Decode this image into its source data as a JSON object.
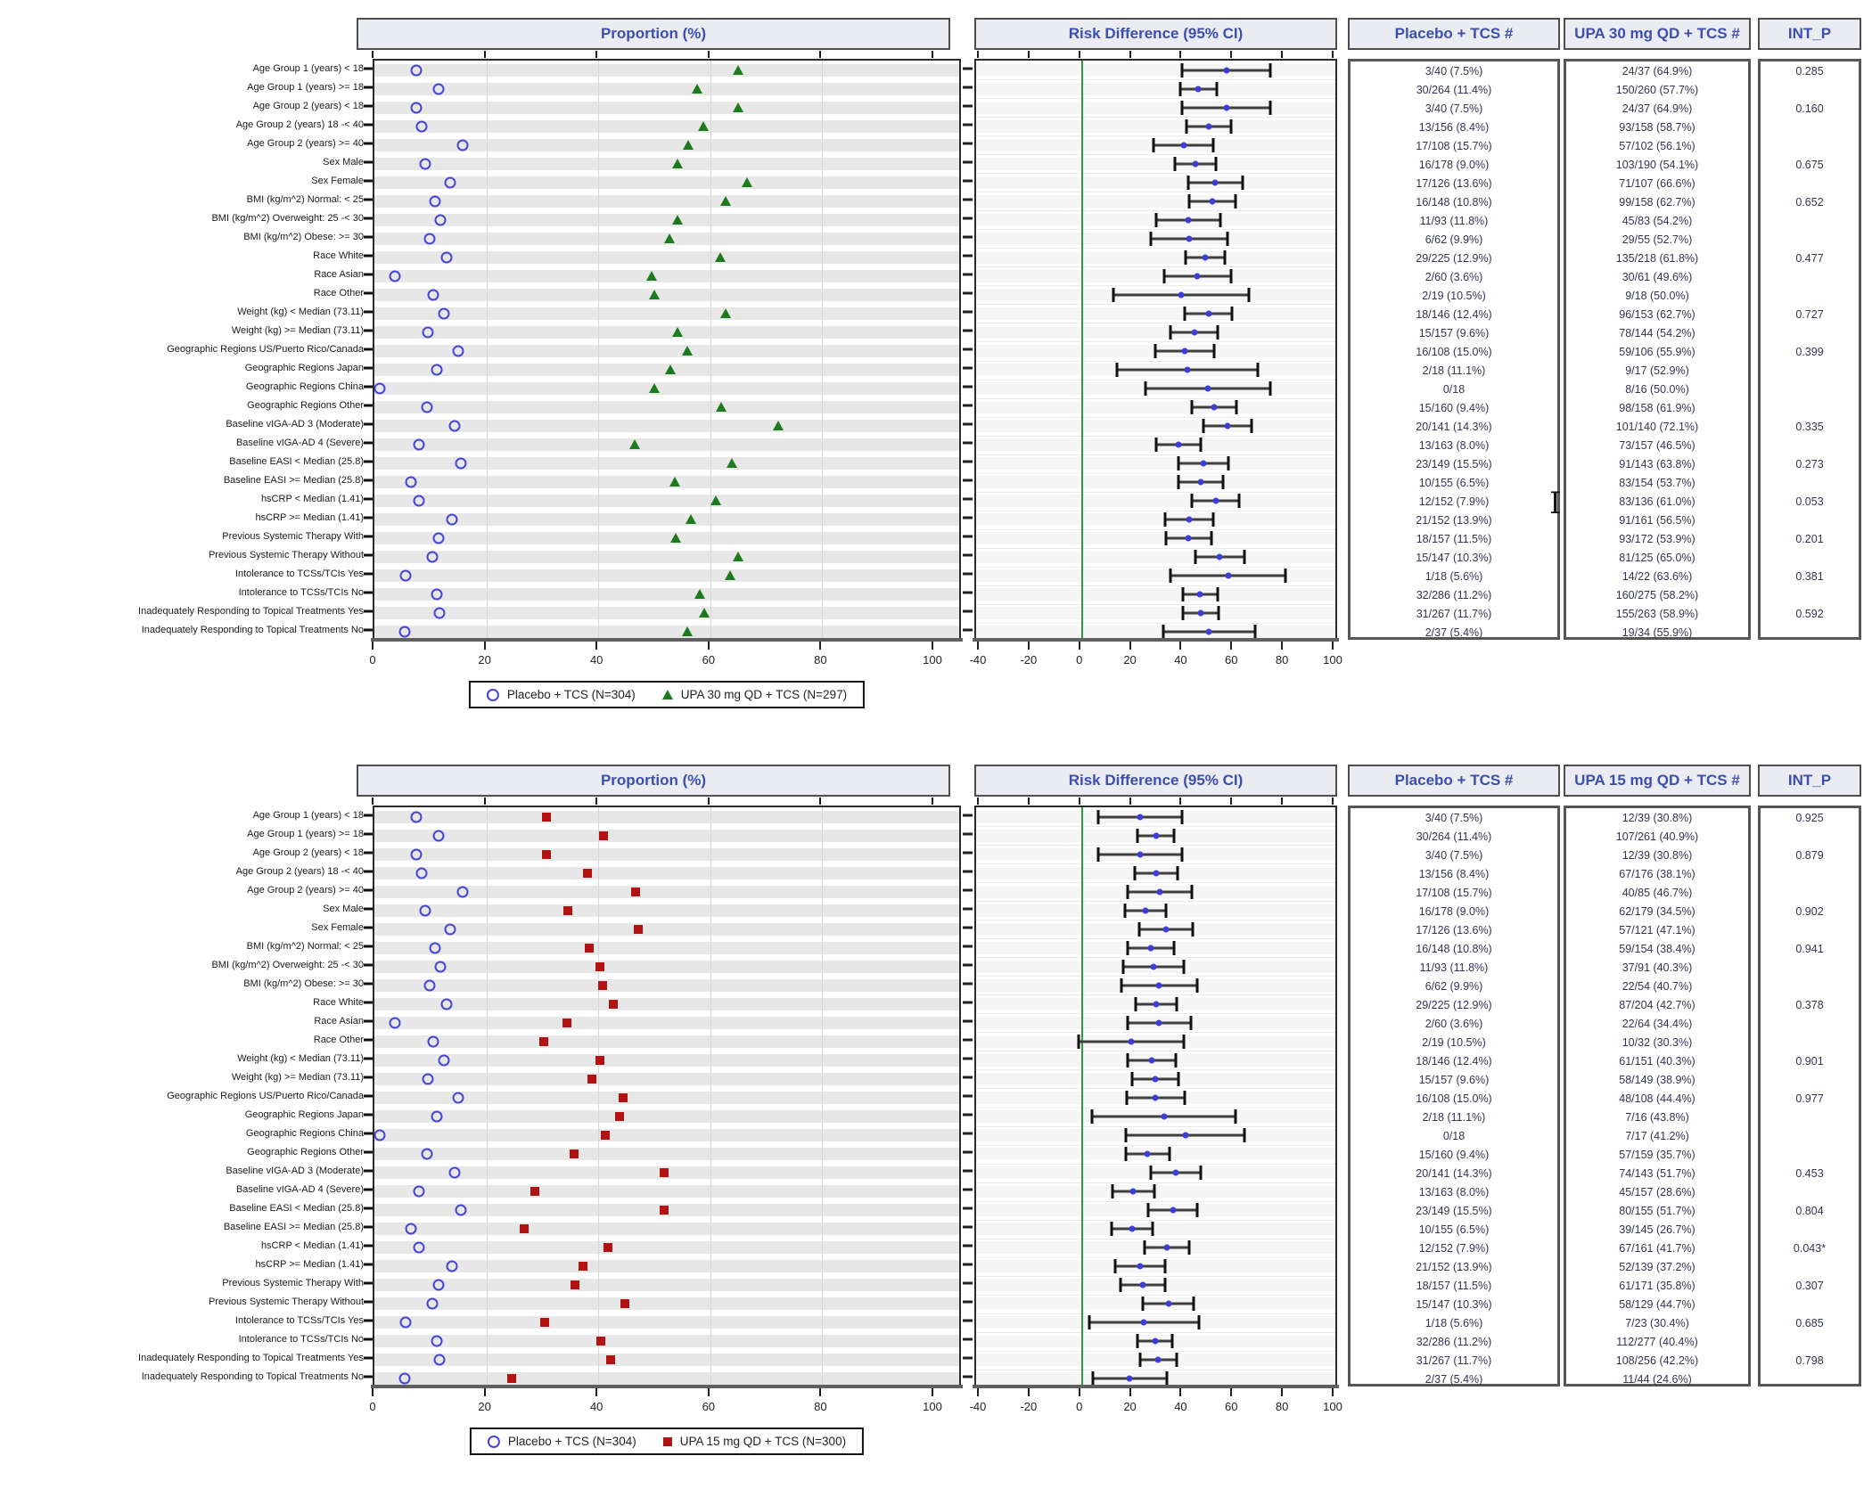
{
  "chart_data": {
    "type": "forest",
    "title": "",
    "proportion_axis": {
      "title": "Proportion (%)",
      "min": 0,
      "max": 100,
      "ticks": [
        0,
        20,
        40,
        60,
        80,
        100
      ],
      "gridlines": [
        20,
        40,
        60,
        80
      ]
    },
    "risk_axis": {
      "title": "Risk Difference (95% CI)",
      "min": -40,
      "max": 100,
      "ticks": [
        -40,
        -20,
        0,
        20,
        40,
        60,
        80,
        100
      ],
      "zero_line_color": "#2d9c3e"
    },
    "row_format": [
      "label",
      "placebo",
      "placebo_pct",
      "active",
      "active_pct",
      "rd",
      "ci_lo",
      "ci_hi",
      "int_p"
    ],
    "colors": {
      "placebo_marker": "#4646d6",
      "upa30_marker": "#1d7a1d",
      "upa15_marker": "#b21212",
      "rd_dot": "#3d3dd8",
      "header_text": "#3b4fae",
      "header_bg": "#ebebf2",
      "zero_line": "#2d9c3e"
    },
    "panels": [
      {
        "name": "UPA 30 mg QD",
        "headers": {
          "proportion": "Proportion (%)",
          "risk": "Risk Difference (95% CI)",
          "placebo": "Placebo + TCS #",
          "active": "UPA 30 mg QD + TCS #",
          "int_p": "INT_P"
        },
        "legend": {
          "placebo": "Placebo + TCS (N=304)",
          "active": "UPA 30 mg QD + TCS (N=297)"
        },
        "active_marker": {
          "shape": "triangle",
          "color": "#1d7a1d"
        },
        "rows": [
          [
            "Age Group 1 (years) < 18",
            "3/40 (7.5%)",
            7.5,
            "24/37 (64.9%)",
            64.9,
            57.4,
            40.0,
            74.8,
            "0.285"
          ],
          [
            "Age Group 1 (years) >= 18",
            "30/264 (11.4%)",
            11.4,
            "150/260 (57.7%)",
            57.7,
            46.3,
            39.2,
            53.4,
            null
          ],
          [
            "Age Group 2 (years) < 18",
            "3/40 (7.5%)",
            7.5,
            "24/37 (64.9%)",
            64.9,
            57.4,
            40.0,
            74.8,
            "0.160"
          ],
          [
            "Age Group 2 (years) 18 -< 40",
            "13/156 (8.4%)",
            8.4,
            "93/158 (58.7%)",
            58.7,
            50.3,
            41.5,
            59.1,
            null
          ],
          [
            "Age Group 2 (years) >= 40",
            "17/108 (15.7%)",
            15.7,
            "57/102 (56.1%)",
            56.1,
            40.4,
            28.6,
            52.2,
            null
          ],
          [
            "Sex Male",
            "16/178 (9.0%)",
            9.0,
            "103/190 (54.1%)",
            54.1,
            45.1,
            36.9,
            53.3,
            "0.675"
          ],
          [
            "Sex Female",
            "17/126 (13.6%)",
            13.6,
            "71/107 (66.6%)",
            66.6,
            53.0,
            42.2,
            63.8,
            null
          ],
          [
            "BMI (kg/m^2) Normal: < 25",
            "16/148 (10.8%)",
            10.8,
            "99/158 (62.7%)",
            62.7,
            51.9,
            42.8,
            61.0,
            "0.652"
          ],
          [
            "BMI (kg/m^2) Overweight: 25 -< 30",
            "11/93 (11.8%)",
            11.8,
            "45/83 (54.2%)",
            54.2,
            42.4,
            29.8,
            55.0,
            null
          ],
          [
            "BMI (kg/m^2) Obese: >= 30",
            "6/62 (9.9%)",
            9.9,
            "29/55 (52.7%)",
            52.7,
            42.8,
            27.7,
            57.9,
            null
          ],
          [
            "Race White",
            "29/225 (12.9%)",
            12.9,
            "135/218 (61.8%)",
            61.8,
            48.9,
            41.1,
            56.7,
            "0.477"
          ],
          [
            "Race Asian",
            "2/60 (3.6%)",
            3.6,
            "30/61 (49.6%)",
            49.6,
            46.0,
            32.7,
            59.3,
            null
          ],
          [
            "Race Other",
            "2/19 (10.5%)",
            10.5,
            "9/18 (50.0%)",
            50.0,
            39.5,
            12.6,
            66.4,
            null
          ],
          [
            "Weight (kg) < Median (73.11)",
            "18/146 (12.4%)",
            12.4,
            "96/153 (62.7%)",
            62.7,
            50.3,
            41.0,
            59.6,
            "0.727"
          ],
          [
            "Weight (kg) >= Median (73.11)",
            "15/157 (9.6%)",
            9.6,
            "78/144 (54.2%)",
            54.2,
            44.6,
            35.3,
            53.9,
            null
          ],
          [
            "Geographic Regions US/Puerto Rico/Canada",
            "16/108 (15.0%)",
            15.0,
            "59/106 (55.9%)",
            55.9,
            40.9,
            29.3,
            52.5,
            "0.399"
          ],
          [
            "Geographic Regions Japan",
            "2/18 (11.1%)",
            11.1,
            "9/17 (52.9%)",
            52.9,
            41.8,
            14.0,
            69.6,
            null
          ],
          [
            "Geographic Regions China",
            "0/18",
            0.0,
            "8/16 (50.0%)",
            50.0,
            50.0,
            25.5,
            74.5,
            null
          ],
          [
            "Geographic Regions Other",
            "15/160 (9.4%)",
            9.4,
            "98/158 (61.9%)",
            61.9,
            52.5,
            43.7,
            61.3,
            null
          ],
          [
            "Baseline vIGA-AD 3 (Moderate)",
            "20/141 (14.3%)",
            14.3,
            "101/140 (72.1%)",
            72.1,
            57.8,
            48.4,
            67.2,
            "0.335"
          ],
          [
            "Baseline vIGA-AD 4 (Severe)",
            "13/163 (8.0%)",
            8.0,
            "73/157 (46.5%)",
            46.5,
            38.5,
            29.7,
            47.3,
            null
          ],
          [
            "Baseline EASI < Median (25.8)",
            "23/149 (15.5%)",
            15.5,
            "91/143 (63.8%)",
            63.8,
            48.3,
            38.5,
            58.1,
            "0.273"
          ],
          [
            "Baseline EASI >= Median (25.8)",
            "10/155 (6.5%)",
            6.5,
            "83/154 (53.7%)",
            53.7,
            47.2,
            38.4,
            56.0,
            null
          ],
          [
            "hsCRP < Median (1.41)",
            "12/152 (7.9%)",
            7.9,
            "83/136 (61.0%)",
            61.0,
            53.1,
            43.8,
            62.4,
            "0.053"
          ],
          [
            "hsCRP >= Median (1.41)",
            "21/152 (13.9%)",
            13.9,
            "91/161 (56.5%)",
            56.5,
            42.6,
            33.2,
            52.0,
            null
          ],
          [
            "Previous Systemic Therapy With",
            "18/157 (11.5%)",
            11.5,
            "93/172 (53.9%)",
            53.9,
            42.4,
            33.4,
            51.4,
            "0.201"
          ],
          [
            "Previous Systemic Therapy Without",
            "15/147 (10.3%)",
            10.3,
            "81/125 (65.0%)",
            65.0,
            54.7,
            45.0,
            64.4,
            null
          ],
          [
            "Intolerance to TCSs/TCIs Yes",
            "1/18 (5.6%)",
            5.6,
            "14/22 (63.6%)",
            63.6,
            58.0,
            35.3,
            80.7,
            "0.381"
          ],
          [
            "Intolerance to TCSs/TCIs No",
            "32/286 (11.2%)",
            11.2,
            "160/275 (58.2%)",
            58.2,
            47.0,
            40.1,
            53.9,
            null
          ],
          [
            "Inadequately Responding to Topical Treatments Yes",
            "31/267 (11.7%)",
            11.7,
            "155/263 (58.9%)",
            58.9,
            47.2,
            40.1,
            54.3,
            "0.592"
          ],
          [
            "Inadequately Responding to Topical Treatments No",
            "2/37 (5.4%)",
            5.4,
            "19/34 (55.9%)",
            55.9,
            50.5,
            32.3,
            68.7,
            null
          ]
        ]
      },
      {
        "name": "UPA 15 mg QD",
        "headers": {
          "proportion": "Proportion (%)",
          "risk": "Risk Difference (95% CI)",
          "placebo": "Placebo + TCS #",
          "active": "UPA 15 mg QD + TCS #",
          "int_p": "INT_P"
        },
        "legend": {
          "placebo": "Placebo + TCS (N=304)",
          "active": "UPA 15 mg QD + TCS (N=300)"
        },
        "active_marker": {
          "shape": "square",
          "color": "#b21212"
        },
        "rows": [
          [
            "Age Group 1 (years) < 18",
            "3/40 (7.5%)",
            7.5,
            "12/39 (30.8%)",
            30.8,
            23.3,
            6.7,
            39.9,
            "0.925"
          ],
          [
            "Age Group 1 (years) >= 18",
            "30/264 (11.4%)",
            11.4,
            "107/261 (40.9%)",
            40.9,
            29.5,
            22.4,
            36.6,
            null
          ],
          [
            "Age Group 2 (years) < 18",
            "3/40 (7.5%)",
            7.5,
            "12/39 (30.8%)",
            30.8,
            23.3,
            6.7,
            39.9,
            "0.879"
          ],
          [
            "Age Group 2 (years) 18 -< 40",
            "13/156 (8.4%)",
            8.4,
            "67/176 (38.1%)",
            38.1,
            29.7,
            21.3,
            38.1,
            null
          ],
          [
            "Age Group 2 (years) >= 40",
            "17/108 (15.7%)",
            15.7,
            "40/85 (46.7%)",
            46.7,
            31.0,
            18.4,
            43.6,
            null
          ],
          [
            "Sex Male",
            "16/178 (9.0%)",
            9.0,
            "62/179 (34.5%)",
            34.5,
            25.5,
            17.4,
            33.6,
            "0.902"
          ],
          [
            "Sex Female",
            "17/126 (13.6%)",
            13.6,
            "57/121 (47.1%)",
            47.1,
            33.5,
            22.8,
            44.2,
            null
          ],
          [
            "BMI (kg/m^2) Normal: < 25",
            "16/148 (10.8%)",
            10.8,
            "59/154 (38.4%)",
            38.4,
            27.6,
            18.4,
            36.8,
            "0.941"
          ],
          [
            "BMI (kg/m^2) Overweight: 25 -< 30",
            "11/93 (11.8%)",
            11.8,
            "37/91 (40.3%)",
            40.3,
            28.5,
            16.5,
            40.5,
            null
          ],
          [
            "BMI (kg/m^2) Obese: >= 30",
            "6/62 (9.9%)",
            9.9,
            "22/54 (40.7%)",
            40.7,
            30.8,
            15.8,
            45.8,
            null
          ],
          [
            "Race White",
            "29/225 (12.9%)",
            12.9,
            "87/204 (42.7%)",
            42.7,
            29.8,
            21.7,
            37.9,
            "0.378"
          ],
          [
            "Race Asian",
            "2/60 (3.6%)",
            3.6,
            "22/64 (34.4%)",
            34.4,
            30.8,
            18.3,
            43.3,
            null
          ],
          [
            "Race Other",
            "2/19 (10.5%)",
            10.5,
            "10/32 (30.3%)",
            30.3,
            19.8,
            -1.1,
            40.7,
            null
          ],
          [
            "Weight (kg) < Median (73.11)",
            "18/146 (12.4%)",
            12.4,
            "61/151 (40.3%)",
            40.3,
            27.9,
            18.4,
            37.4,
            "0.901"
          ],
          [
            "Weight (kg) >= Median (73.11)",
            "15/157 (9.6%)",
            9.6,
            "58/149 (38.9%)",
            38.9,
            29.3,
            20.2,
            38.4,
            null
          ],
          [
            "Geographic Regions US/Puerto Rico/Canada",
            "16/108 (15.0%)",
            15.0,
            "48/108 (44.4%)",
            44.4,
            29.4,
            17.9,
            40.9,
            "0.977"
          ],
          [
            "Geographic Regions Japan",
            "2/18 (11.1%)",
            11.1,
            "7/16 (43.8%)",
            43.8,
            32.7,
            4.4,
            61.0,
            null
          ],
          [
            "Geographic Regions China",
            "0/18",
            0.0,
            "7/17 (41.2%)",
            41.2,
            41.2,
            17.8,
            64.6,
            null
          ],
          [
            "Geographic Regions Other",
            "15/160 (9.4%)",
            9.4,
            "57/159 (35.7%)",
            35.7,
            26.3,
            17.6,
            35.0,
            null
          ],
          [
            "Baseline vIGA-AD 3 (Moderate)",
            "20/141 (14.3%)",
            14.3,
            "74/143 (51.7%)",
            51.7,
            37.4,
            27.4,
            47.4,
            "0.453"
          ],
          [
            "Baseline vIGA-AD 4 (Severe)",
            "13/163 (8.0%)",
            8.0,
            "45/157 (28.6%)",
            28.6,
            20.6,
            12.4,
            28.8,
            null
          ],
          [
            "Baseline EASI < Median (25.8)",
            "23/149 (15.5%)",
            15.5,
            "80/155 (51.7%)",
            51.7,
            36.2,
            26.4,
            46.0,
            "0.804"
          ],
          [
            "Baseline EASI >= Median (25.8)",
            "10/155 (6.5%)",
            6.5,
            "39/145 (26.7%)",
            26.7,
            20.2,
            12.0,
            28.4,
            null
          ],
          [
            "hsCRP < Median (1.41)",
            "12/152 (7.9%)",
            7.9,
            "67/161 (41.7%)",
            41.7,
            33.8,
            25.1,
            42.5,
            "0.043*"
          ],
          [
            "hsCRP >= Median (1.41)",
            "21/152 (13.9%)",
            13.9,
            "52/139 (37.2%)",
            37.2,
            23.3,
            13.6,
            33.0,
            null
          ],
          [
            "Previous Systemic Therapy With",
            "18/157 (11.5%)",
            11.5,
            "61/171 (35.8%)",
            35.8,
            24.3,
            15.6,
            33.0,
            "0.307"
          ],
          [
            "Previous Systemic Therapy Without",
            "15/147 (10.3%)",
            10.3,
            "58/129 (44.7%)",
            44.7,
            34.4,
            24.5,
            44.3,
            null
          ],
          [
            "Intolerance to TCSs/TCIs Yes",
            "1/18 (5.6%)",
            5.6,
            "7/23 (30.4%)",
            30.4,
            24.8,
            3.2,
            46.4,
            "0.685"
          ],
          [
            "Intolerance to TCSs/TCIs No",
            "32/286 (11.2%)",
            11.2,
            "112/277 (40.4%)",
            40.4,
            29.2,
            22.4,
            36.0,
            null
          ],
          [
            "Inadequately Responding to Topical Treatments Yes",
            "31/267 (11.7%)",
            11.7,
            "108/256 (42.2%)",
            42.2,
            30.5,
            23.3,
            37.7,
            "0.798"
          ],
          [
            "Inadequately Responding to Topical Treatments No",
            "2/37 (5.4%)",
            5.4,
            "11/44 (24.6%)",
            24.6,
            19.2,
            4.5,
            33.9,
            null
          ]
        ]
      }
    ]
  }
}
